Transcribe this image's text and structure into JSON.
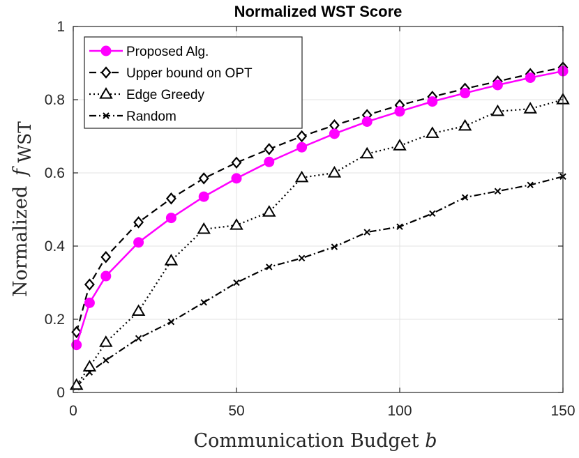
{
  "chart_data": {
    "type": "line",
    "title": "Normalized WST Score",
    "xlabel": "Communication Budget",
    "xlabel_var": "b",
    "ylabel": "Normalized",
    "ylabel_var": "f",
    "ylabel_sub": "WST",
    "xlim": [
      0,
      150
    ],
    "ylim": [
      0,
      1
    ],
    "xticks": [
      0,
      50,
      100,
      150
    ],
    "yticks": [
      0,
      0.2,
      0.4,
      0.6,
      0.8,
      1
    ],
    "ytick_labels": [
      "0",
      "0.2",
      "0.4",
      "0.6",
      "0.8",
      "1"
    ],
    "grid": true,
    "legend_position": "top-left",
    "x": [
      1,
      5,
      10,
      20,
      30,
      40,
      50,
      60,
      70,
      80,
      90,
      100,
      110,
      120,
      130,
      140,
      150
    ],
    "series": [
      {
        "name": "Proposed Alg.",
        "color": "#ff00ff",
        "marker": "circle",
        "line_style": "solid",
        "values": [
          0.13,
          0.245,
          0.318,
          0.41,
          0.477,
          0.535,
          0.585,
          0.63,
          0.67,
          0.707,
          0.74,
          0.768,
          0.795,
          0.818,
          0.84,
          0.86,
          0.878
        ]
      },
      {
        "name": "Upper bound on OPT",
        "color": "#000000",
        "marker": "diamond",
        "line_style": "dashed",
        "values": [
          0.165,
          0.295,
          0.37,
          0.465,
          0.53,
          0.585,
          0.628,
          0.665,
          0.7,
          0.73,
          0.758,
          0.785,
          0.808,
          0.83,
          0.85,
          0.87,
          0.888
        ]
      },
      {
        "name": "Edge Greedy",
        "color": "#000000",
        "marker": "triangle",
        "line_style": "dotted",
        "values": [
          0.02,
          0.07,
          0.137,
          0.222,
          0.36,
          0.446,
          0.457,
          0.493,
          0.587,
          0.6,
          0.652,
          0.674,
          0.708,
          0.728,
          0.768,
          0.775,
          0.8
        ]
      },
      {
        "name": "Random",
        "color": "#000000",
        "marker": "x",
        "line_style": "dashdot",
        "values": [
          0.015,
          0.055,
          0.088,
          0.148,
          0.193,
          0.246,
          0.3,
          0.343,
          0.367,
          0.398,
          0.438,
          0.453,
          0.489,
          0.533,
          0.55,
          0.567,
          0.59
        ]
      }
    ]
  }
}
